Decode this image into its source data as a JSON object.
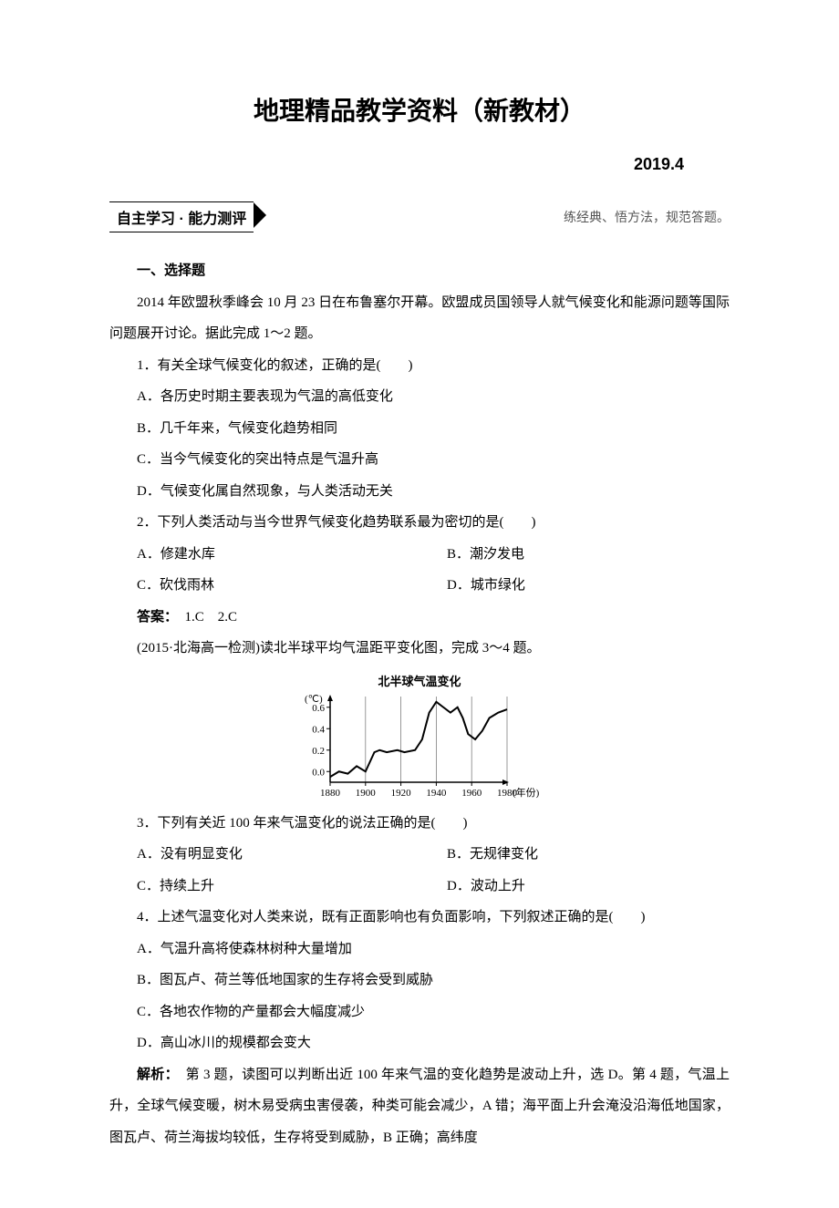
{
  "header": {
    "title": "地理精品教学资料（新教材）",
    "date": "2019.4",
    "section_box": "自主学习 · 能力测评",
    "section_note": "练经典、悟方法，规范答题。"
  },
  "body": {
    "heading1": "一、选择题",
    "intro1": "2014 年欧盟秋季峰会 10 月 23 日在布鲁塞尔开幕。欧盟成员国领导人就气候变化和能源问题等国际问题展开讨论。据此完成 1～2 题。",
    "q1": "1．有关全球气候变化的叙述，正确的是(　　)",
    "q1a": "A．各历史时期主要表现为气温的高低变化",
    "q1b": "B．几千年来，气候变化趋势相同",
    "q1c": "C．当今气候变化的突出特点是气温升高",
    "q1d": "D．气候变化属自然现象，与人类活动无关",
    "q2": "2．下列人类活动与当今世界气候变化趋势联系最为密切的是(　　)",
    "q2a": "A．修建水库",
    "q2b": "B．潮汐发电",
    "q2c": "C．砍伐雨林",
    "q2d": "D．城市绿化",
    "ans12_label": "答案：",
    "ans12": "　1.C　2.C",
    "intro2": "(2015·北海高一检测)读北半球平均气温距平变化图，完成 3～4 题。",
    "q3": "3．下列有关近 100 年来气温变化的说法正确的是(　　)",
    "q3a": "A．没有明显变化",
    "q3b": "B．无规律变化",
    "q3c": "C．持续上升",
    "q3d": "D．波动上升",
    "q4": "4．上述气温变化对人类来说，既有正面影响也有负面影响，下列叙述正确的是(　　)",
    "q4a": "A．气温升高将使森林树种大量增加",
    "q4b": "B．图瓦卢、荷兰等低地国家的生存将会受到威胁",
    "q4c": "C．各地农作物的产量都会大幅度减少",
    "q4d": "D．高山冰川的规模都会变大",
    "expl_label": "解析：",
    "expl": "　第 3 题，读图可以判断出近 100 年来气温的变化趋势是波动上升，选 D。第 4 题，气温上升，全球气候变暖，树木易受病虫害侵袭，种类可能会减少，A 错；海平面上升会淹没沿海低地国家，图瓦卢、荷兰海拔均较低，生存将受到威胁，B 正确；高纬度"
  },
  "chart": {
    "type": "line",
    "title": "北半球气温变化",
    "y_unit": "(℃)",
    "x_unit": "(年份)",
    "xlim": [
      1880,
      1980
    ],
    "ylim": [
      -0.1,
      0.7
    ],
    "yticks": [
      0.0,
      0.2,
      0.4,
      0.6
    ],
    "ytick_labels": [
      "0.0",
      "0.2",
      "0.4",
      "0.6"
    ],
    "xticks": [
      1880,
      1900,
      1920,
      1940,
      1960,
      1980
    ],
    "xtick_labels": [
      "1880",
      "1900",
      "1920",
      "1940",
      "1960",
      "1980"
    ],
    "line_color": "#000000",
    "axis_color": "#000000",
    "tick_font_size": 11,
    "line_width": 2,
    "points": [
      [
        1880,
        -0.05
      ],
      [
        1885,
        0.0
      ],
      [
        1890,
        -0.02
      ],
      [
        1895,
        0.05
      ],
      [
        1900,
        0.0
      ],
      [
        1905,
        0.18
      ],
      [
        1908,
        0.2
      ],
      [
        1912,
        0.18
      ],
      [
        1918,
        0.2
      ],
      [
        1922,
        0.18
      ],
      [
        1928,
        0.2
      ],
      [
        1932,
        0.3
      ],
      [
        1936,
        0.55
      ],
      [
        1938,
        0.6
      ],
      [
        1940,
        0.65
      ],
      [
        1944,
        0.6
      ],
      [
        1948,
        0.55
      ],
      [
        1952,
        0.6
      ],
      [
        1955,
        0.5
      ],
      [
        1958,
        0.35
      ],
      [
        1962,
        0.3
      ],
      [
        1966,
        0.38
      ],
      [
        1970,
        0.5
      ],
      [
        1975,
        0.55
      ],
      [
        1980,
        0.58
      ]
    ]
  }
}
